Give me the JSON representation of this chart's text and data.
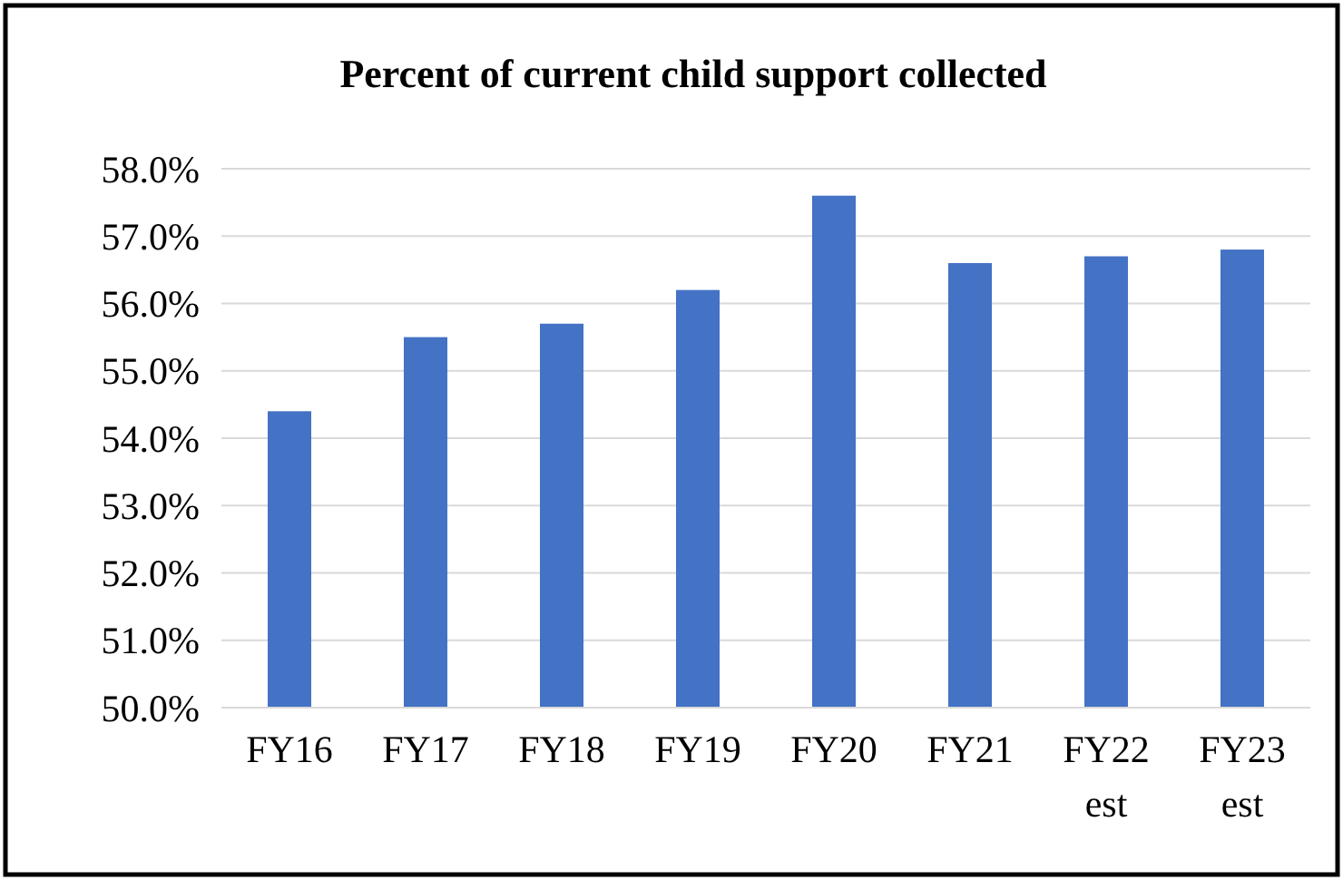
{
  "chart_data": {
    "type": "bar",
    "title": "Percent of current child support collected",
    "categories": [
      "FY16",
      "FY17",
      "FY18",
      "FY19",
      "FY20",
      "FY21",
      "FY22 est",
      "FY23 est"
    ],
    "values": [
      54.4,
      55.5,
      55.7,
      56.2,
      57.6,
      56.6,
      56.7,
      56.8
    ],
    "color": "#4472c4",
    "ylim": [
      50,
      58
    ],
    "yticks": [
      {
        "value": 50,
        "label": "50.0%"
      },
      {
        "value": 51,
        "label": "51.0%"
      },
      {
        "value": 52,
        "label": "52.0%"
      },
      {
        "value": 53,
        "label": "53.0%"
      },
      {
        "value": 54,
        "label": "54.0%"
      },
      {
        "value": 55,
        "label": "55.0%"
      },
      {
        "value": 56,
        "label": "56.0%"
      },
      {
        "value": 57,
        "label": "57.0%"
      },
      {
        "value": 58,
        "label": "58.0%"
      }
    ],
    "grid": true
  }
}
